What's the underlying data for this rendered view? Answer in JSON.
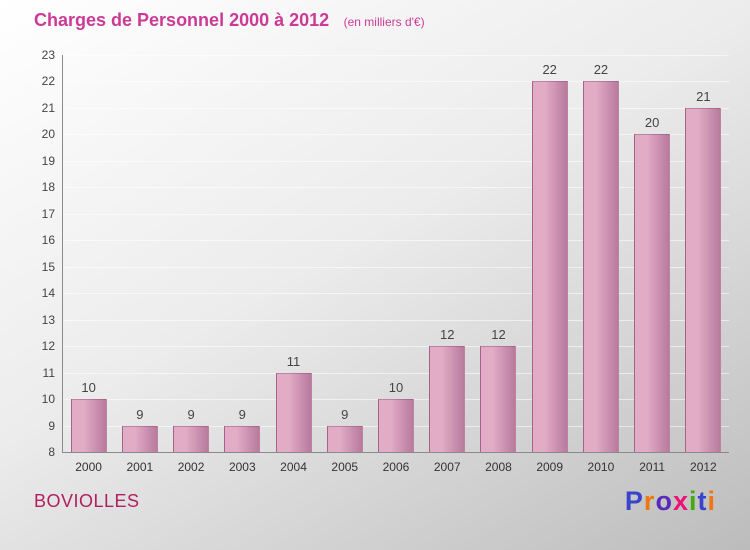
{
  "chart_data": {
    "type": "bar",
    "title": "Charges de Personnel 2000 à 2012",
    "subtitle": "(en milliers d'€)",
    "title_color": "#cc3a96",
    "categories": [
      "2000",
      "2001",
      "2002",
      "2003",
      "2004",
      "2005",
      "2006",
      "2007",
      "2008",
      "2009",
      "2010",
      "2011",
      "2012"
    ],
    "values": [
      10,
      9,
      9,
      9,
      11,
      9,
      10,
      12,
      12,
      22,
      22,
      20,
      21
    ],
    "xlabel": "",
    "ylabel": "",
    "ylim": [
      8,
      23
    ],
    "ytick_step": 1,
    "grid": true,
    "legend": "none",
    "bar_gradient": [
      "#e2abc6",
      "#b87a9e"
    ],
    "value_label_color": "#444444"
  },
  "footer": {
    "commune": "BOVIOLLES",
    "commune_color": "#b02060"
  },
  "logo": {
    "text": "Proxiti",
    "letters": [
      {
        "char": "P",
        "color": "#3a43cc"
      },
      {
        "char": "r",
        "color": "#ee7711"
      },
      {
        "char": "o",
        "color": "#5a2bbb"
      },
      {
        "char": "x",
        "color": "#ee1177"
      },
      {
        "char": "i",
        "color": "#44aa11"
      },
      {
        "char": "t",
        "color": "#3a43cc"
      },
      {
        "char": "i",
        "color": "#ee7711"
      }
    ]
  }
}
